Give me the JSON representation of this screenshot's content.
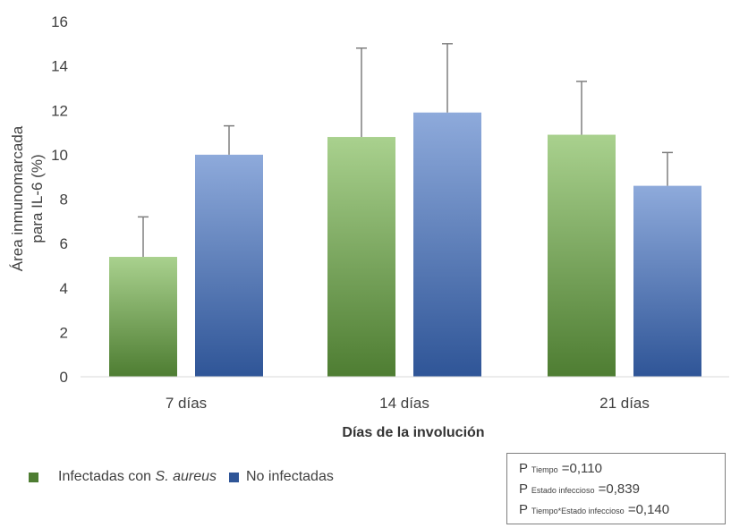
{
  "chart_data": {
    "type": "bar",
    "title": "",
    "xlabel": "Días de la involución",
    "ylabel_lines": [
      "Área inmunomarcada",
      "para IL-6 (%)"
    ],
    "ylim": [
      0,
      16
    ],
    "yticks": [
      0,
      2,
      4,
      6,
      8,
      10,
      12,
      14,
      16
    ],
    "categories": [
      "7 días",
      "14 días",
      "21 días"
    ],
    "grid": false,
    "legend_position": "bottom-left",
    "series": [
      {
        "name_prefix": "Infectadas con ",
        "name_italic": "S. aureus",
        "values": [
          5.4,
          10.8,
          10.9
        ],
        "error_upper": [
          7.2,
          14.8,
          13.3
        ],
        "color_top": "#a9d18e",
        "color_bottom": "#4e7d32"
      },
      {
        "name": "No infectadas",
        "values": [
          10.0,
          11.9,
          8.6
        ],
        "error_upper": [
          11.3,
          15.0,
          10.1
        ],
        "color_top": "#8eaadb",
        "color_bottom": "#2f5597"
      }
    ]
  },
  "stats": [
    {
      "p": "P",
      "sub": "Tiempo",
      "value": "=0,110"
    },
    {
      "p": "P",
      "sub": "Estado infeccioso",
      "value": "=0,839"
    },
    {
      "p": "P",
      "sub": "Tiempo*Estado infeccioso",
      "value": "=0,140"
    }
  ]
}
